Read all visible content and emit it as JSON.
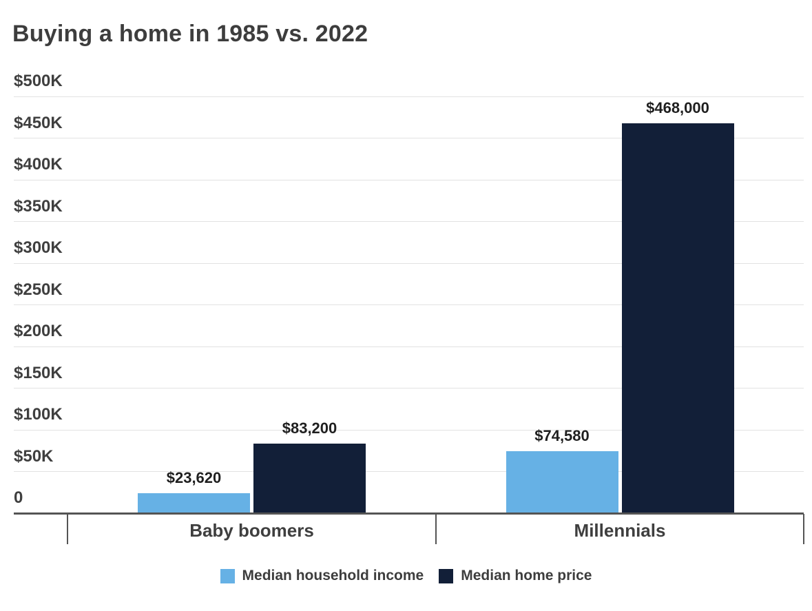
{
  "title": "Buying a home in 1985 vs. 2022",
  "chart_data": {
    "type": "bar",
    "title": "Buying a home in 1985 vs. 2022",
    "categories": [
      "Baby boomers",
      "Millennials"
    ],
    "series": [
      {
        "name": "Median household income",
        "color": "#66b1e5",
        "values": [
          23620,
          74580
        ],
        "labels": [
          "$23,620",
          "$74,580"
        ]
      },
      {
        "name": "Median home price",
        "color": "#121f38",
        "values": [
          83200,
          468000
        ],
        "labels": [
          "$83,200",
          "$468,000"
        ]
      }
    ],
    "y_ticks": [
      {
        "value": 500000,
        "label": "$500K"
      },
      {
        "value": 450000,
        "label": "$450K"
      },
      {
        "value": 400000,
        "label": "$400K"
      },
      {
        "value": 350000,
        "label": "$350K"
      },
      {
        "value": 300000,
        "label": "$300K"
      },
      {
        "value": 250000,
        "label": "$250K"
      },
      {
        "value": 200000,
        "label": "$200K"
      },
      {
        "value": 150000,
        "label": "$150K"
      },
      {
        "value": 100000,
        "label": "$100K"
      },
      {
        "value": 50000,
        "label": "$50K"
      },
      {
        "value": 0,
        "label": "0"
      }
    ],
    "ylim": [
      0,
      500000
    ],
    "xlabel": "",
    "ylabel": "",
    "grid": true,
    "legend_position": "bottom",
    "colors": {
      "income_series": "#66b1e5",
      "home_price_series": "#121f38",
      "title_text": "#3d3d3d",
      "axis_line": "#545454",
      "gridline": "#e2e2e2"
    }
  }
}
